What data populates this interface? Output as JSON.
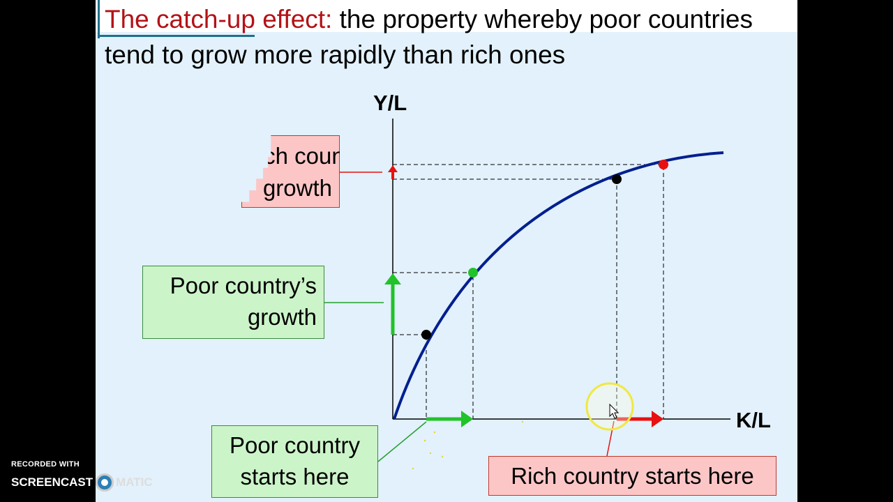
{
  "title": {
    "highlight": "The catch-up effect:",
    "rest": " the property whereby poor countries tend to grow more rapidly than rich ones"
  },
  "axes": {
    "y_label": "Y/L",
    "x_label": "K/L"
  },
  "labels": {
    "rich_growth_line1": "Rich country’s",
    "rich_growth_line2": "growth",
    "poor_growth_line1": "Poor country’s",
    "poor_growth_line2": "growth",
    "poor_start_line1": "Poor country",
    "poor_start_line2": "starts here",
    "rich_start": "Rich country starts here"
  },
  "watermark": {
    "recorded_with": "RECORDED WITH",
    "brand_left": "SCREENCAST",
    "brand_right": "MATIC"
  },
  "colors": {
    "curve": "#001f8f",
    "poor": "#22c22a",
    "rich": "#e81010",
    "title_highlight": "#b31217",
    "background": "#e2f1fb",
    "cursor_highlight": "#f0e840"
  }
}
